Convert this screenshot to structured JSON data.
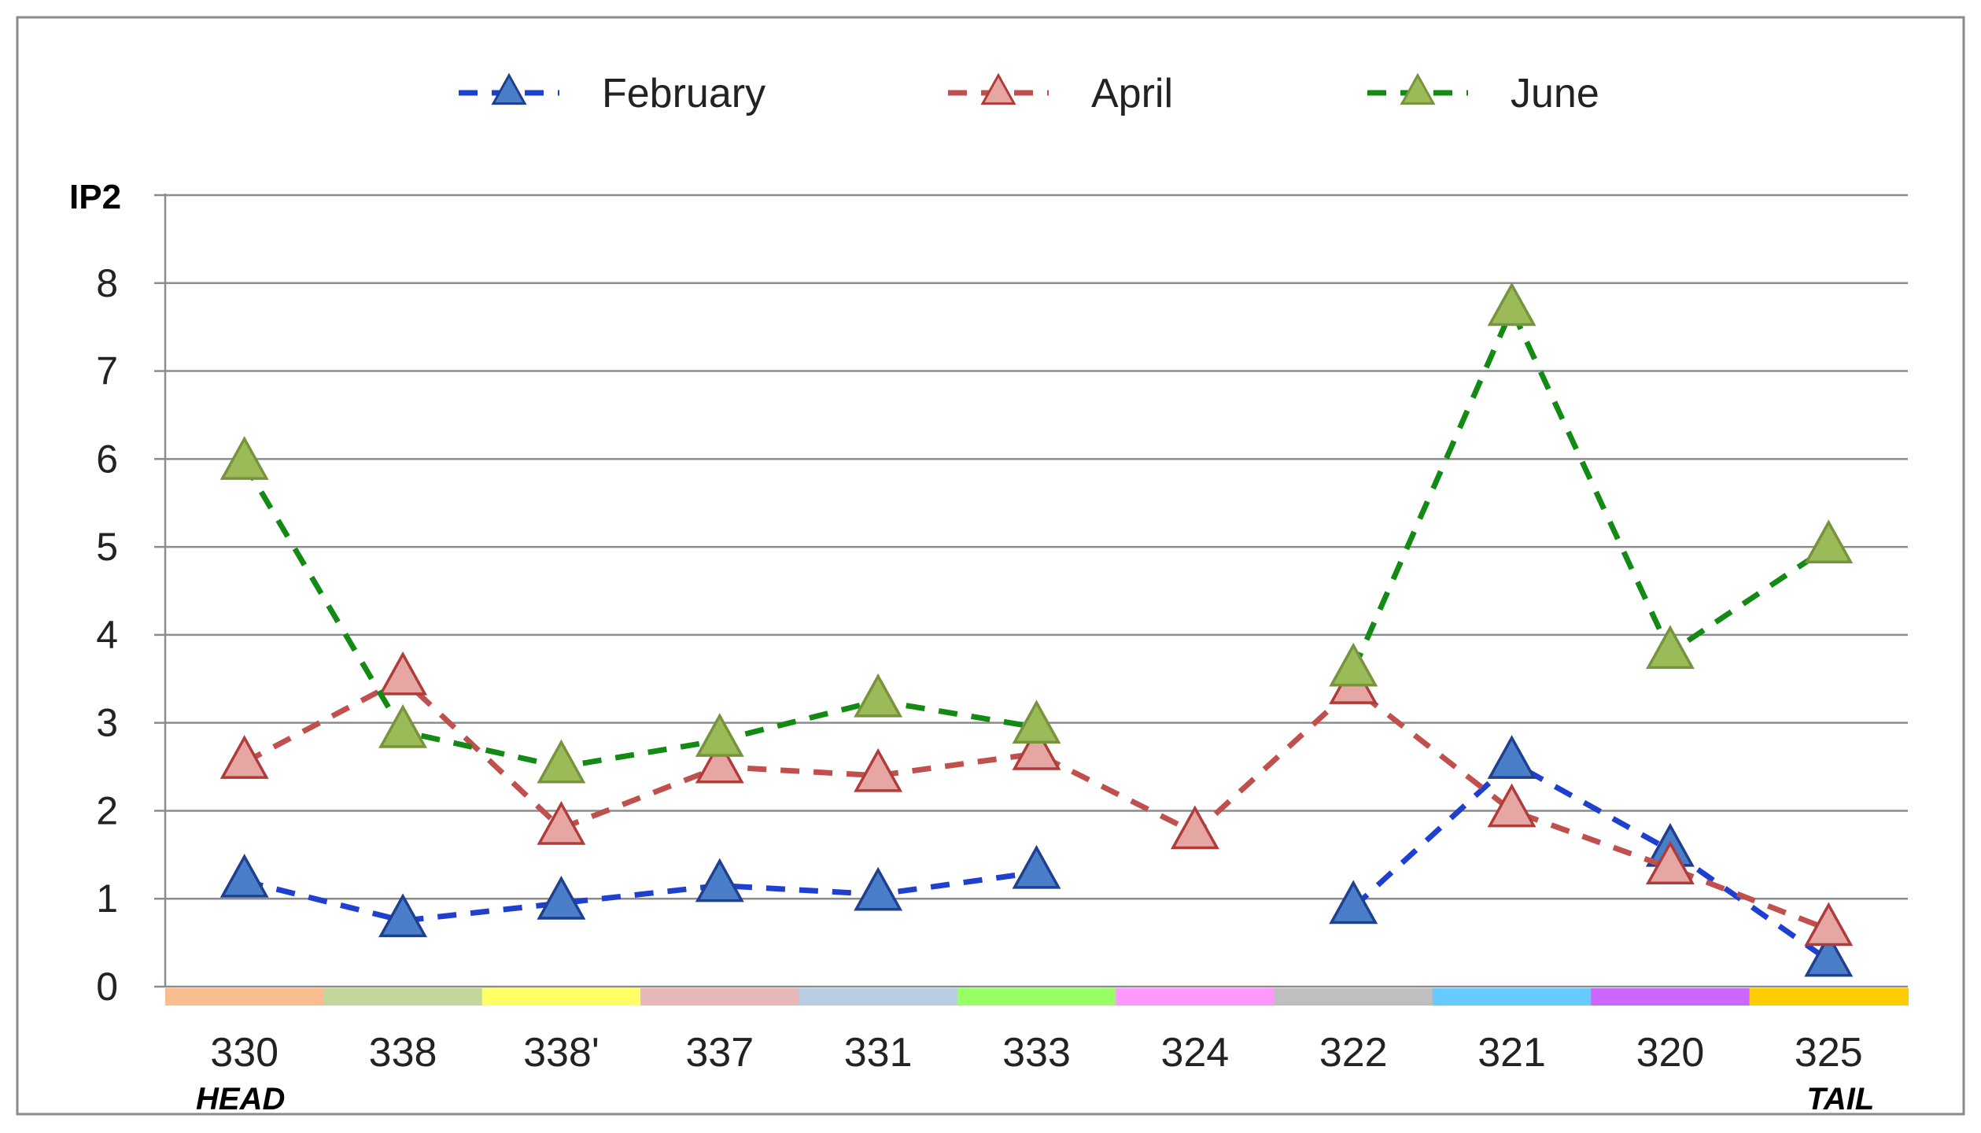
{
  "chart_data": {
    "type": "line",
    "ylabel": "IP2",
    "ylim": [
      0,
      9
    ],
    "yticks": [
      0,
      1,
      2,
      3,
      4,
      5,
      6,
      7,
      8
    ],
    "grid": true,
    "legend_position": "top",
    "categories": [
      "330",
      "338",
      "338'",
      "337",
      "331",
      "333",
      "324",
      "322",
      "321",
      "320",
      "325"
    ],
    "category_colors": [
      "#f9bd8f",
      "#c4d79b",
      "#ffff66",
      "#e6b9b8",
      "#b8cce4",
      "#99ff66",
      "#ff99ff",
      "#bfbfbf",
      "#66ccff",
      "#cc66ff",
      "#ffcc00"
    ],
    "annotations": {
      "first": "HEAD",
      "last": "TAIL"
    },
    "series": [
      {
        "name": "February",
        "line_color": "#1f3fcf",
        "marker_fill": "#4a7ec8",
        "marker_stroke": "#1f3f8f",
        "segments": [
          [
            [
              0,
              1.2
            ],
            [
              1,
              0.75
            ],
            [
              2,
              0.95
            ],
            [
              3,
              1.15
            ],
            [
              4,
              1.05
            ],
            [
              5,
              1.3
            ]
          ],
          [
            [
              7,
              0.9
            ],
            [
              8,
              2.55
            ],
            [
              9,
              1.55
            ],
            [
              10,
              0.3
            ]
          ]
        ]
      },
      {
        "name": "April",
        "line_color": "#c0504d",
        "marker_fill": "#e6a6a4",
        "marker_stroke": "#b03c3a",
        "segments": [
          [
            [
              0,
              2.55
            ],
            [
              1,
              3.5
            ],
            [
              2,
              1.8
            ],
            [
              3,
              2.5
            ],
            [
              4,
              2.4
            ],
            [
              5,
              2.65
            ],
            [
              6,
              1.75
            ],
            [
              7,
              3.4
            ],
            [
              8,
              2.0
            ],
            [
              9,
              1.35
            ],
            [
              10,
              0.65
            ]
          ]
        ]
      },
      {
        "name": "June",
        "line_color": "#138a13",
        "marker_fill": "#9bbb59",
        "marker_stroke": "#77933c",
        "segments": [
          [
            [
              0,
              5.95
            ],
            [
              1,
              2.9
            ],
            [
              2,
              2.5
            ],
            [
              3,
              2.8
            ],
            [
              4,
              3.25
            ],
            [
              5,
              2.95
            ]
          ],
          [
            [
              7,
              3.6
            ],
            [
              8,
              7.7
            ],
            [
              9,
              3.8
            ],
            [
              10,
              5.0
            ]
          ]
        ]
      }
    ]
  }
}
